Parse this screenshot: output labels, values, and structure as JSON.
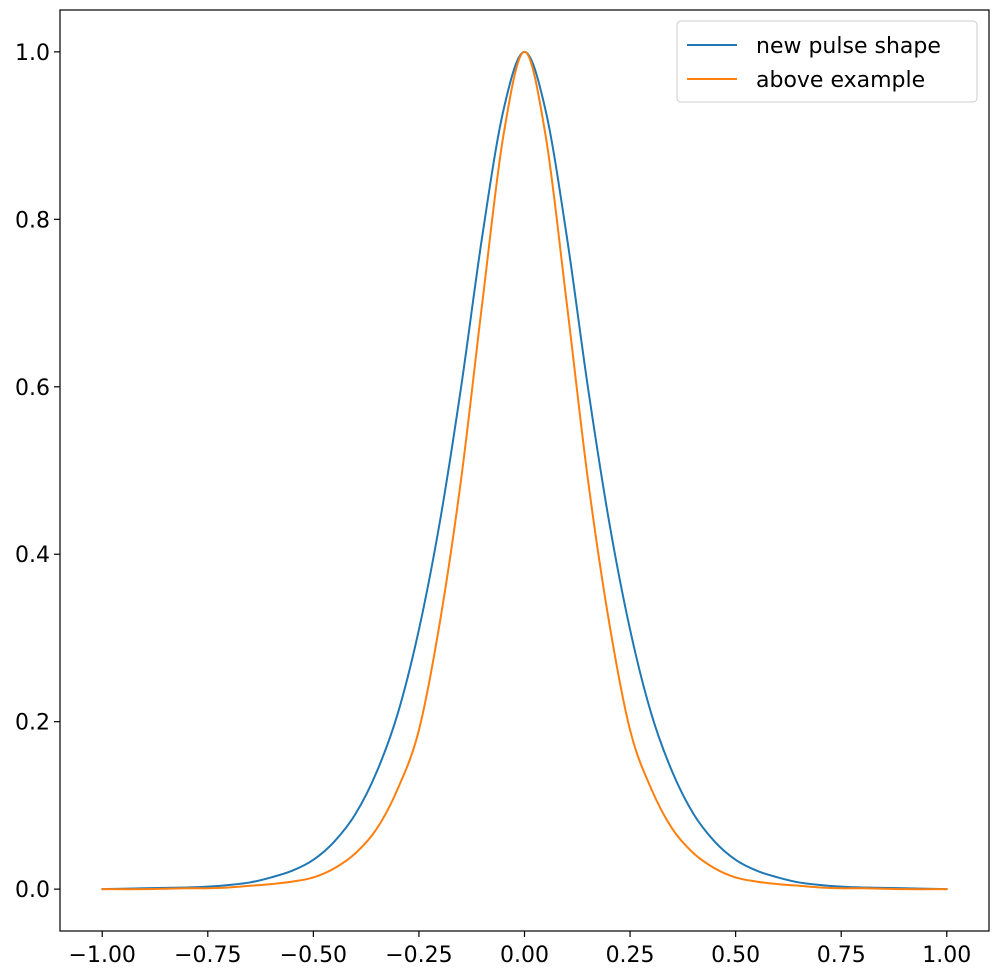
{
  "chart_data": {
    "type": "line",
    "title": "",
    "xlabel": "",
    "ylabel": "",
    "xlim": [
      -1.1,
      1.1
    ],
    "ylim": [
      -0.05,
      1.05
    ],
    "xticks": [
      -1.0,
      -0.75,
      -0.5,
      -0.25,
      0.0,
      0.25,
      0.5,
      0.75,
      1.0
    ],
    "xtick_labels": [
      "−1.00",
      "−0.75",
      "−0.50",
      "−0.25",
      "0.00",
      "0.25",
      "0.50",
      "0.75",
      "1.00"
    ],
    "yticks": [
      0.0,
      0.2,
      0.4,
      0.6,
      0.8,
      1.0
    ],
    "ytick_labels": [
      "0.0",
      "0.2",
      "0.4",
      "0.6",
      "0.8",
      "1.0"
    ],
    "grid": false,
    "legend": "top-right",
    "x": [
      -1.0,
      -0.9,
      -0.8,
      -0.75,
      -0.7,
      -0.65,
      -0.6,
      -0.55,
      -0.5,
      -0.45,
      -0.4,
      -0.35,
      -0.3,
      -0.25,
      -0.2,
      -0.15,
      -0.1,
      -0.05,
      0.0,
      0.05,
      0.1,
      0.15,
      0.2,
      0.25,
      0.3,
      0.35,
      0.4,
      0.45,
      0.5,
      0.55,
      0.6,
      0.65,
      0.7,
      0.75,
      0.8,
      0.9,
      1.0
    ],
    "series": [
      {
        "name": "new pulse shape",
        "color": "#1f77b4",
        "values": [
          0.0,
          0.001,
          0.002,
          0.003,
          0.005,
          0.008,
          0.014,
          0.022,
          0.035,
          0.057,
          0.09,
          0.14,
          0.21,
          0.31,
          0.44,
          0.6,
          0.78,
          0.93,
          1.0,
          0.93,
          0.78,
          0.6,
          0.44,
          0.31,
          0.21,
          0.14,
          0.09,
          0.057,
          0.035,
          0.022,
          0.014,
          0.008,
          0.005,
          0.003,
          0.002,
          0.001,
          0.0
        ]
      },
      {
        "name": "above example",
        "color": "#ff7f0e",
        "values": [
          0.0,
          0.0,
          0.001,
          0.001,
          0.002,
          0.004,
          0.006,
          0.009,
          0.014,
          0.025,
          0.043,
          0.072,
          0.12,
          0.19,
          0.32,
          0.49,
          0.7,
          0.9,
          1.0,
          0.9,
          0.7,
          0.49,
          0.32,
          0.19,
          0.12,
          0.072,
          0.043,
          0.025,
          0.014,
          0.009,
          0.006,
          0.004,
          0.002,
          0.001,
          0.001,
          0.0,
          0.0
        ]
      }
    ]
  }
}
